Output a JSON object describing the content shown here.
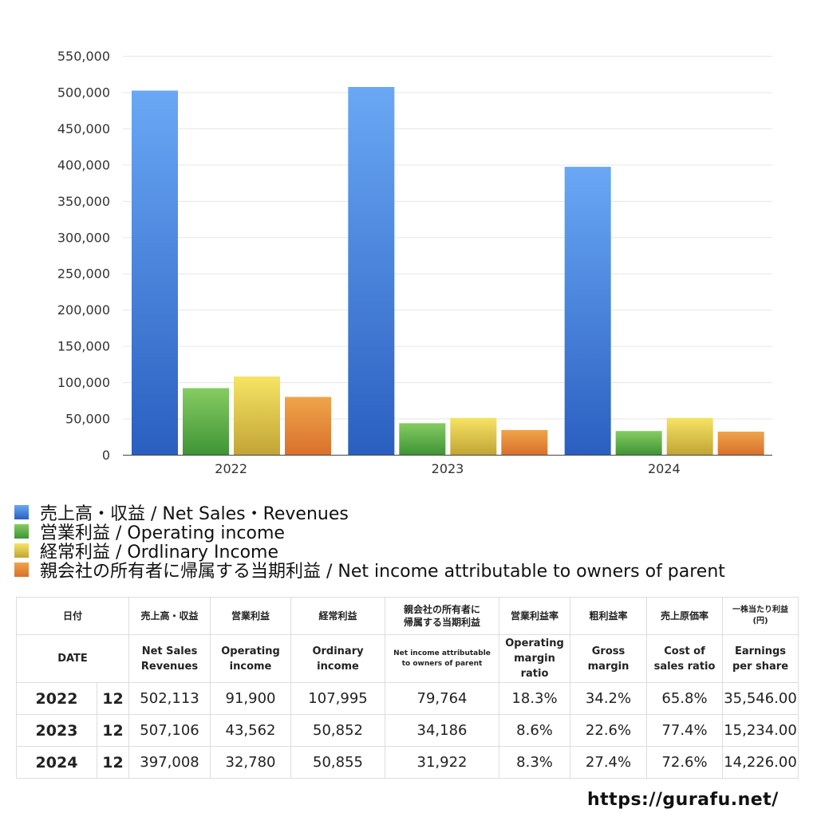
{
  "chart_data": {
    "type": "bar",
    "categories": [
      "2022",
      "2023",
      "2024"
    ],
    "series": [
      {
        "name": "売上高・収益 / Net Sales・Revenues",
        "values": [
          502113,
          507106,
          397008
        ],
        "color_top": "#6aa8f5",
        "color_bottom": "#2a5fc0"
      },
      {
        "name": "営業利益 / Operating income",
        "values": [
          91900,
          43562,
          32780
        ],
        "color_top": "#86cc62",
        "color_bottom": "#3f9436"
      },
      {
        "name": "経常利益 / Ordlinary Income",
        "values": [
          107995,
          50852,
          50855
        ],
        "color_top": "#f6e463",
        "color_bottom": "#c2a436"
      },
      {
        "name": "親会社の所有者に帰属する当期利益 / Net income attributable to owners of parent",
        "values": [
          79764,
          34186,
          31922
        ],
        "color_top": "#efa54a",
        "color_bottom": "#d9702c"
      }
    ],
    "ylim": [
      0,
      550000
    ],
    "yticks": [
      "0",
      "50,000",
      "100,000",
      "150,000",
      "200,000",
      "250,000",
      "300,000",
      "350,000",
      "400,000",
      "450,000",
      "500,000",
      "550,000"
    ],
    "title": "",
    "xlabel": "",
    "ylabel": "",
    "legend_position": "bottom"
  },
  "table": {
    "headers_jp": [
      "日付",
      "売上高・収益",
      "営業利益",
      "経常利益",
      "親会社の所有者に\n帰属する当期利益",
      "営業利益率",
      "粗利益率",
      "売上原価率",
      "一株当たり利益\n(円)"
    ],
    "headers_en": [
      "DATE",
      "Net Sales\nRevenues",
      "Operating\nincome",
      "Ordinary\nincome",
      "Net income attributable\nto owners of parent",
      "Operating\nmargin\nratio",
      "Gross\nmargin",
      "Cost of\nsales ratio",
      "Earnings\nper share"
    ],
    "rows": [
      {
        "year": "2022",
        "month": "12",
        "cells": [
          "502,113",
          "91,900",
          "107,995",
          "79,764",
          "18.3%",
          "34.2%",
          "65.8%",
          "35,546.00"
        ]
      },
      {
        "year": "2023",
        "month": "12",
        "cells": [
          "507,106",
          "43,562",
          "50,852",
          "34,186",
          "8.6%",
          "22.6%",
          "77.4%",
          "15,234.00"
        ]
      },
      {
        "year": "2024",
        "month": "12",
        "cells": [
          "397,008",
          "32,780",
          "50,855",
          "31,922",
          "8.3%",
          "27.4%",
          "72.6%",
          "14,226.00"
        ]
      }
    ]
  },
  "footer": {
    "url": "https://gurafu.net/"
  }
}
